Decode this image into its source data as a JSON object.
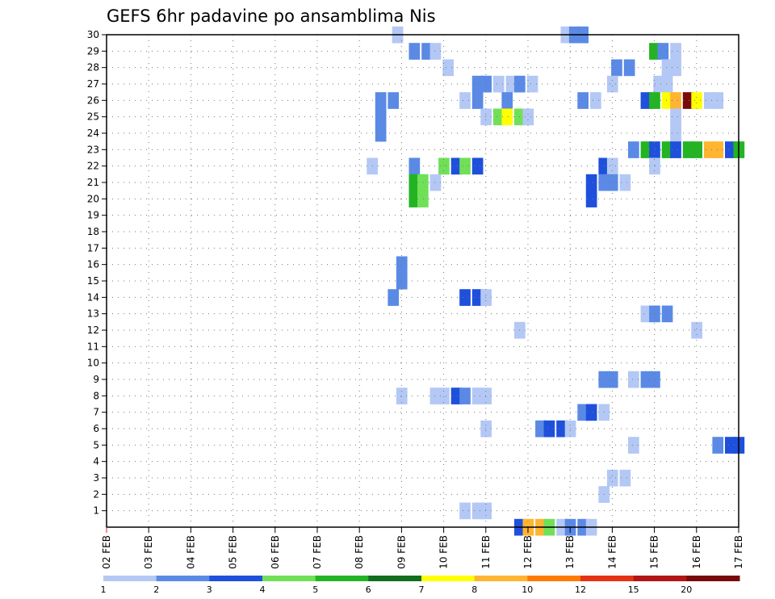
{
  "chart_data": {
    "type": "heatmap",
    "title": "GEFS 6hr padavine po ansamblima Nis",
    "x_tick_labels": [
      "02 FEB",
      "03 FEB",
      "04 FEB",
      "05 FEB",
      "06 FEB",
      "07 FEB",
      "08 FEB",
      "09 FEB",
      "10 FEB",
      "11 FEB",
      "12 FEB",
      "13 FEB",
      "14 FEB",
      "15 FEB",
      "16 FEB",
      "17 FEB"
    ],
    "y_tick_labels": [
      "1",
      "2",
      "3",
      "4",
      "5",
      "6",
      "7",
      "8",
      "9",
      "10",
      "11",
      "12",
      "13",
      "14",
      "15",
      "16",
      "17",
      "18",
      "19",
      "20",
      "21",
      "22",
      "23",
      "24",
      "25",
      "26",
      "27",
      "28",
      "29",
      "30"
    ],
    "y_range": [
      0,
      30
    ],
    "grid": true,
    "colorbar": {
      "boundary_labels": [
        "1",
        "2",
        "3",
        "4",
        "5",
        "6",
        "7",
        "8",
        "10",
        "12",
        "15",
        "20"
      ],
      "colors": [
        "#b4c8f5",
        "#5a8ae6",
        "#1e50dc",
        "#70e058",
        "#22b422",
        "#106e1e",
        "#ffff00",
        "#ffb432",
        "#ff7a00",
        "#e63214",
        "#b41414",
        "#780a0a"
      ]
    },
    "cells": [
      {
        "t": 12.9,
        "m": 30,
        "c": 0
      },
      {
        "t": 13.1,
        "m": 30,
        "c": 1
      },
      {
        "t": 13.3,
        "m": 30,
        "c": 1
      },
      {
        "t": 8.9,
        "m": 30,
        "c": 0
      },
      {
        "t": 9.3,
        "m": 29,
        "c": 1
      },
      {
        "t": 9.6,
        "m": 29,
        "c": 1
      },
      {
        "t": 9.8,
        "m": 29,
        "c": 0
      },
      {
        "t": 15.0,
        "m": 29,
        "c": 4
      },
      {
        "t": 15.2,
        "m": 29,
        "c": 1
      },
      {
        "t": 15.5,
        "m": 29,
        "c": 0
      },
      {
        "t": 10.1,
        "m": 28,
        "c": 0
      },
      {
        "t": 14.1,
        "m": 28,
        "c": 1
      },
      {
        "t": 14.4,
        "m": 28,
        "c": 1
      },
      {
        "t": 15.3,
        "m": 28,
        "c": 0
      },
      {
        "t": 15.5,
        "m": 28,
        "c": 0
      },
      {
        "t": 10.8,
        "m": 27,
        "c": 1
      },
      {
        "t": 11.0,
        "m": 27,
        "c": 1
      },
      {
        "t": 11.3,
        "m": 27,
        "c": 0
      },
      {
        "t": 11.6,
        "m": 27,
        "c": 0
      },
      {
        "t": 11.8,
        "m": 27,
        "c": 1
      },
      {
        "t": 12.1,
        "m": 27,
        "c": 0
      },
      {
        "t": 14.0,
        "m": 27,
        "c": 0
      },
      {
        "t": 15.1,
        "m": 27,
        "c": 0
      },
      {
        "t": 15.3,
        "m": 27,
        "c": 0
      },
      {
        "t": 8.5,
        "m": 26,
        "c": 1
      },
      {
        "t": 8.8,
        "m": 26,
        "c": 1
      },
      {
        "t": 10.5,
        "m": 26,
        "c": 0
      },
      {
        "t": 10.8,
        "m": 26,
        "c": 1
      },
      {
        "t": 11.5,
        "m": 26,
        "c": 1
      },
      {
        "t": 13.3,
        "m": 26,
        "c": 1
      },
      {
        "t": 13.6,
        "m": 26,
        "c": 0
      },
      {
        "t": 14.8,
        "m": 26,
        "c": 2
      },
      {
        "t": 15.0,
        "m": 26,
        "c": 4
      },
      {
        "t": 15.3,
        "m": 26,
        "c": 6
      },
      {
        "t": 15.5,
        "m": 26,
        "c": 7
      },
      {
        "t": 15.8,
        "m": 26,
        "c": 11
      },
      {
        "t": 16.0,
        "m": 26,
        "c": 6
      },
      {
        "t": 16.3,
        "m": 26,
        "c": 0
      },
      {
        "t": 16.5,
        "m": 26,
        "c": 0
      },
      {
        "t": 8.5,
        "m": 25,
        "c": 1
      },
      {
        "t": 11.0,
        "m": 25,
        "c": 0
      },
      {
        "t": 11.3,
        "m": 25,
        "c": 3
      },
      {
        "t": 11.5,
        "m": 25,
        "c": 6
      },
      {
        "t": 11.8,
        "m": 25,
        "c": 3
      },
      {
        "t": 12.0,
        "m": 25,
        "c": 0
      },
      {
        "t": 15.5,
        "m": 25,
        "c": 0
      },
      {
        "t": 15.5,
        "m": 24,
        "c": 0
      },
      {
        "t": 8.5,
        "m": 24,
        "c": 1
      },
      {
        "t": 14.5,
        "m": 23,
        "c": 1
      },
      {
        "t": 14.8,
        "m": 23,
        "c": 4
      },
      {
        "t": 15.0,
        "m": 23,
        "c": 2
      },
      {
        "t": 15.3,
        "m": 23,
        "c": 4
      },
      {
        "t": 15.5,
        "m": 23,
        "c": 2
      },
      {
        "t": 15.8,
        "m": 23,
        "c": 4
      },
      {
        "t": 16.0,
        "m": 23,
        "c": 4
      },
      {
        "t": 16.3,
        "m": 23,
        "c": 7
      },
      {
        "t": 16.5,
        "m": 23,
        "c": 7
      },
      {
        "t": 16.8,
        "m": 23,
        "c": 2
      },
      {
        "t": 17.0,
        "m": 23,
        "c": 4
      },
      {
        "t": 8.3,
        "m": 22,
        "c": 0
      },
      {
        "t": 9.3,
        "m": 22,
        "c": 1
      },
      {
        "t": 10.0,
        "m": 22,
        "c": 3
      },
      {
        "t": 10.3,
        "m": 22,
        "c": 2
      },
      {
        "t": 10.5,
        "m": 22,
        "c": 3
      },
      {
        "t": 10.8,
        "m": 22,
        "c": 2
      },
      {
        "t": 13.8,
        "m": 22,
        "c": 2
      },
      {
        "t": 14.0,
        "m": 22,
        "c": 0
      },
      {
        "t": 15.0,
        "m": 22,
        "c": 0
      },
      {
        "t": 9.3,
        "m": 21,
        "c": 4
      },
      {
        "t": 9.5,
        "m": 21,
        "c": 3
      },
      {
        "t": 9.8,
        "m": 21,
        "c": 0
      },
      {
        "t": 13.5,
        "m": 21,
        "c": 2
      },
      {
        "t": 13.8,
        "m": 21,
        "c": 1
      },
      {
        "t": 14.0,
        "m": 21,
        "c": 1
      },
      {
        "t": 14.3,
        "m": 21,
        "c": 0
      },
      {
        "t": 9.3,
        "m": 20,
        "c": 4
      },
      {
        "t": 9.5,
        "m": 20,
        "c": 3
      },
      {
        "t": 13.5,
        "m": 20,
        "c": 2
      },
      {
        "t": 9.0,
        "m": 15,
        "c": 1
      },
      {
        "t": 8.8,
        "m": 14,
        "c": 1
      },
      {
        "t": 10.5,
        "m": 14,
        "c": 2
      },
      {
        "t": 10.8,
        "m": 14,
        "c": 2
      },
      {
        "t": 11.0,
        "m": 14,
        "c": 0
      },
      {
        "t": 9.0,
        "m": 16,
        "c": 1
      },
      {
        "t": 14.8,
        "m": 13,
        "c": 0
      },
      {
        "t": 15.0,
        "m": 13,
        "c": 1
      },
      {
        "t": 15.3,
        "m": 13,
        "c": 1
      },
      {
        "t": 11.8,
        "m": 12,
        "c": 0
      },
      {
        "t": 16.0,
        "m": 12,
        "c": 0
      },
      {
        "t": 13.8,
        "m": 9,
        "c": 1
      },
      {
        "t": 14.0,
        "m": 9,
        "c": 1
      },
      {
        "t": 14.5,
        "m": 9,
        "c": 0
      },
      {
        "t": 14.8,
        "m": 9,
        "c": 1
      },
      {
        "t": 15.0,
        "m": 9,
        "c": 1
      },
      {
        "t": 9.0,
        "m": 8,
        "c": 0
      },
      {
        "t": 9.8,
        "m": 8,
        "c": 0
      },
      {
        "t": 10.0,
        "m": 8,
        "c": 0
      },
      {
        "t": 10.3,
        "m": 8,
        "c": 2
      },
      {
        "t": 10.5,
        "m": 8,
        "c": 1
      },
      {
        "t": 10.8,
        "m": 8,
        "c": 0
      },
      {
        "t": 11.0,
        "m": 8,
        "c": 0
      },
      {
        "t": 13.3,
        "m": 7,
        "c": 1
      },
      {
        "t": 13.5,
        "m": 7,
        "c": 2
      },
      {
        "t": 13.8,
        "m": 7,
        "c": 0
      },
      {
        "t": 11.0,
        "m": 6,
        "c": 0
      },
      {
        "t": 12.3,
        "m": 6,
        "c": 1
      },
      {
        "t": 12.5,
        "m": 6,
        "c": 2
      },
      {
        "t": 12.8,
        "m": 6,
        "c": 2
      },
      {
        "t": 13.0,
        "m": 6,
        "c": 0
      },
      {
        "t": 14.5,
        "m": 5,
        "c": 0
      },
      {
        "t": 16.5,
        "m": 5,
        "c": 1
      },
      {
        "t": 16.8,
        "m": 5,
        "c": 2
      },
      {
        "t": 17.0,
        "m": 5,
        "c": 2
      },
      {
        "t": 14.0,
        "m": 3,
        "c": 0
      },
      {
        "t": 14.3,
        "m": 3,
        "c": 0
      },
      {
        "t": 13.8,
        "m": 2,
        "c": 0
      },
      {
        "t": 10.5,
        "m": 1,
        "c": 0
      },
      {
        "t": 10.8,
        "m": 1,
        "c": 0
      },
      {
        "t": 11.0,
        "m": 1,
        "c": 0
      },
      {
        "t": 11.8,
        "m": 0,
        "c": 2
      },
      {
        "t": 12.0,
        "m": 0,
        "c": 7
      },
      {
        "t": 12.3,
        "m": 0,
        "c": 7
      },
      {
        "t": 12.5,
        "m": 0,
        "c": 3
      },
      {
        "t": 12.8,
        "m": 0,
        "c": 0
      },
      {
        "t": 13.0,
        "m": 0,
        "c": 1
      },
      {
        "t": 13.3,
        "m": 0,
        "c": 1
      },
      {
        "t": 13.5,
        "m": 0,
        "c": 0
      }
    ]
  }
}
